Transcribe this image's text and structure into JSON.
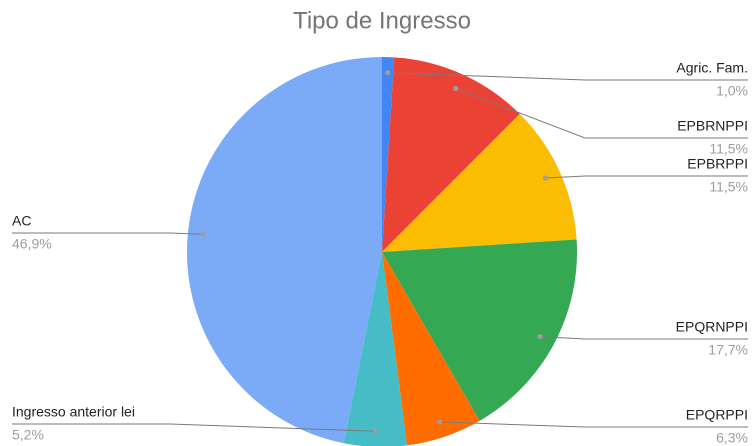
{
  "chart_data": {
    "type": "pie",
    "title": "Tipo de Ingresso",
    "labels": [
      "Agric. Fam.",
      "EPBRNPPI",
      "EPBRPPI",
      "EPQRNPPI",
      "EPQRPPI",
      "Ingresso anterior lei",
      "AC"
    ],
    "values": [
      1.0,
      11.5,
      11.5,
      17.7,
      6.3,
      5.2,
      46.9
    ],
    "value_labels": [
      "1,0%",
      "11,5%",
      "11,5%",
      "17,7%",
      "6,3%",
      "5,2%",
      "46,9%"
    ],
    "colors": [
      "#4285f4",
      "#ea4335",
      "#fbbc04",
      "#34a853",
      "#ff6d01",
      "#46bdc6",
      "#7baaf7"
    ]
  }
}
